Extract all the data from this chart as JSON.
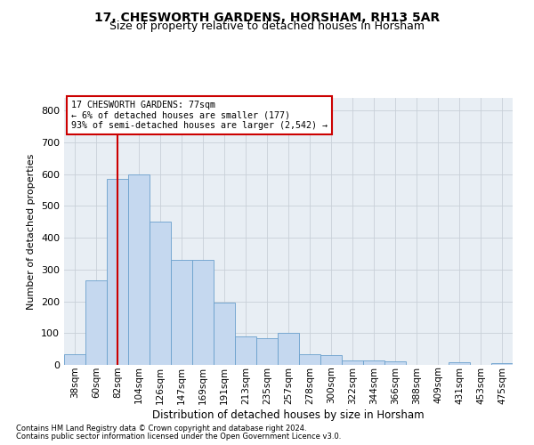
{
  "title": "17, CHESWORTH GARDENS, HORSHAM, RH13 5AR",
  "subtitle": "Size of property relative to detached houses in Horsham",
  "xlabel": "Distribution of detached houses by size in Horsham",
  "ylabel": "Number of detached properties",
  "bar_values": [
    35,
    265,
    585,
    600,
    450,
    330,
    330,
    195,
    90,
    85,
    100,
    35,
    30,
    15,
    15,
    12,
    0,
    0,
    8,
    0,
    7
  ],
  "categories": [
    "38sqm",
    "60sqm",
    "82sqm",
    "104sqm",
    "126sqm",
    "147sqm",
    "169sqm",
    "191sqm",
    "213sqm",
    "235sqm",
    "257sqm",
    "278sqm",
    "300sqm",
    "322sqm",
    "344sqm",
    "366sqm",
    "388sqm",
    "409sqm",
    "431sqm",
    "453sqm",
    "475sqm"
  ],
  "bar_color": "#c5d8ef",
  "bar_edge_color": "#6aa0cc",
  "red_line_x": 2.0,
  "annotation_text": "17 CHESWORTH GARDENS: 77sqm\n← 6% of detached houses are smaller (177)\n93% of semi-detached houses are larger (2,542) →",
  "red_line_color": "#cc0000",
  "annotation_box_color": "#cc0000",
  "ylim": [
    0,
    840
  ],
  "yticks": [
    0,
    100,
    200,
    300,
    400,
    500,
    600,
    700,
    800
  ],
  "grid_color": "#c8d0d8",
  "bg_color": "#e8eef4",
  "footer_line1": "Contains HM Land Registry data © Crown copyright and database right 2024.",
  "footer_line2": "Contains public sector information licensed under the Open Government Licence v3.0.",
  "title_fontsize": 10,
  "subtitle_fontsize": 9
}
